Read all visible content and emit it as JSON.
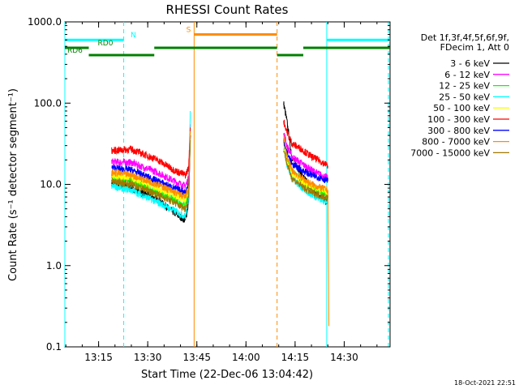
{
  "chart_data": {
    "type": "line",
    "title": "RHESSI Count Rates",
    "xlabel": "Start Time (22-Dec-06 13:04:42)",
    "ylabel": "Count Rate (s⁻¹ detector segment⁻¹)",
    "yscale": "log",
    "ylim": [
      0.1,
      1000
    ],
    "xlim": [
      "13:04:42",
      "14:44:00"
    ],
    "grid": false,
    "legend_position": "right",
    "legend_header": [
      "Det 1f,3f,4f,5f,6f,9f,",
      "FDecim 1, Att 0"
    ],
    "x_ticks": [
      "13:15",
      "13:30",
      "13:45",
      "14:00",
      "14:15",
      "14:30"
    ],
    "y_ticks": [
      "0.1",
      "1.0",
      "10.0",
      "100.0",
      "1000.0"
    ],
    "footer_text": "18-Oct-2021 22:51",
    "series": [
      {
        "name": "3 - 6 keV",
        "color": "#000000",
        "segments": [
          {
            "x": [
              "13:19:00",
              "13:25:00",
              "13:33:00",
              "13:38:00",
              "13:41:30",
              "13:42:30",
              "13:43:00"
            ],
            "y": [
              10.5,
              9.0,
              6.5,
              4.5,
              3.6,
              6.0,
              40.0
            ]
          },
          {
            "x": [
              "14:11:30",
              "14:12:30",
              "14:14:00",
              "14:17:00",
              "14:20:00",
              "14:23:00",
              "14:25:00"
            ],
            "y": [
              100.0,
              60.0,
              22.0,
              13.0,
              9.0,
              7.0,
              6.0
            ]
          }
        ]
      },
      {
        "name": "6 - 12 keV",
        "color": "#ff00ff",
        "segments": [
          {
            "x": [
              "13:19:00",
              "13:25:00",
              "13:33:00",
              "13:38:00",
              "13:41:30",
              "13:42:30",
              "13:43:00"
            ],
            "y": [
              19.0,
              18.5,
              14.0,
              11.0,
              9.5,
              12.0,
              55.0
            ]
          },
          {
            "x": [
              "14:11:30",
              "14:12:30",
              "14:14:00",
              "14:17:00",
              "14:20:00",
              "14:23:00",
              "14:25:00"
            ],
            "y": [
              45.0,
              30.0,
              22.0,
              18.0,
              15.0,
              13.0,
              12.0
            ]
          }
        ]
      },
      {
        "name": "12 - 25 keV",
        "color": "#00ff00",
        "segments": [
          {
            "x": [
              "13:19:00",
              "13:25:00",
              "13:33:00",
              "13:38:00",
              "13:41:30",
              "13:42:30",
              "13:43:00"
            ],
            "y": [
              12.0,
              11.0,
              8.0,
              6.5,
              5.5,
              8.0,
              50.0
            ]
          },
          {
            "x": [
              "14:11:30",
              "14:12:30",
              "14:14:00",
              "14:17:00",
              "14:20:00",
              "14:23:00",
              "14:25:00"
            ],
            "y": [
              35.0,
              22.0,
              15.0,
              11.0,
              9.0,
              8.0,
              7.0
            ]
          }
        ]
      },
      {
        "name": "25 - 50 keV",
        "color": "#00ffff",
        "segments": [
          {
            "x": [
              "13:19:00",
              "13:25:00",
              "13:33:00",
              "13:38:00",
              "13:41:30",
              "13:42:30",
              "13:43:00"
            ],
            "y": [
              9.5,
              8.5,
              6.0,
              4.8,
              4.0,
              7.0,
              80.0
            ]
          },
          {
            "x": [
              "14:11:30",
              "14:12:30",
              "14:14:00",
              "14:17:00",
              "14:20:00",
              "14:23:00",
              "14:25:00"
            ],
            "y": [
              30.0,
              18.0,
              12.0,
              9.0,
              7.5,
              6.5,
              6.0
            ]
          }
        ]
      },
      {
        "name": "50 - 100 keV",
        "color": "#ffff00",
        "segments": [
          {
            "x": [
              "13:19:00",
              "13:25:00",
              "13:33:00",
              "13:38:00",
              "13:41:30",
              "13:42:30",
              "13:43:00"
            ],
            "y": [
              13.0,
              12.0,
              9.0,
              7.5,
              6.5,
              9.0,
              45.0
            ]
          },
          {
            "x": [
              "14:11:30",
              "14:12:30",
              "14:14:00",
              "14:17:00",
              "14:20:00",
              "14:23:00",
              "14:25:00"
            ],
            "y": [
              30.0,
              20.0,
              14.0,
              11.0,
              9.5,
              8.5,
              8.0
            ]
          }
        ]
      },
      {
        "name": "100 - 300 keV",
        "color": "#ff0000",
        "segments": [
          {
            "x": [
              "13:19:00",
              "13:25:00",
              "13:33:00",
              "13:38:00",
              "13:41:30",
              "13:42:30",
              "13:43:00"
            ],
            "y": [
              26.0,
              27.0,
              20.0,
              15.0,
              13.0,
              16.0,
              50.0
            ]
          },
          {
            "x": [
              "14:11:30",
              "14:12:30",
              "14:14:00",
              "14:17:00",
              "14:20:00",
              "14:23:00",
              "14:25:00"
            ],
            "y": [
              60.0,
              45.0,
              32.0,
              27.0,
              22.0,
              19.0,
              17.0
            ]
          }
        ]
      },
      {
        "name": "300 - 800 keV",
        "color": "#0000ff",
        "segments": [
          {
            "x": [
              "13:19:00",
              "13:25:00",
              "13:33:00",
              "13:38:00",
              "13:41:30",
              "13:42:30",
              "13:43:00"
            ],
            "y": [
              16.0,
              15.0,
              11.0,
              9.0,
              8.0,
              10.0,
              40.0
            ]
          },
          {
            "x": [
              "14:11:30",
              "14:12:30",
              "14:14:00",
              "14:17:00",
              "14:20:00",
              "14:23:00",
              "14:25:00"
            ],
            "y": [
              35.0,
              25.0,
              18.0,
              15.0,
              13.0,
              12.0,
              11.0
            ]
          }
        ]
      },
      {
        "name": "800 - 7000 keV",
        "color": "#ff8c00",
        "segments": [
          {
            "x": [
              "13:19:00",
              "13:25:00",
              "13:33:00",
              "13:38:00",
              "13:41:30",
              "13:42:30",
              "13:43:00"
            ],
            "y": [
              14.0,
              13.0,
              10.0,
              8.0,
              7.0,
              9.0,
              45.0
            ]
          },
          {
            "x": [
              "14:11:30",
              "14:12:30",
              "14:14:00",
              "14:17:00",
              "14:20:00",
              "14:23:00",
              "14:25:00",
              "14:25:20"
            ],
            "y": [
              40.0,
              22.0,
              15.0,
              12.0,
              10.0,
              9.0,
              8.5,
              0.18
            ]
          }
        ]
      },
      {
        "name": "7000 - 15000 keV",
        "color": "#a07800",
        "segments": [
          {
            "x": [
              "13:19:00",
              "13:25:00",
              "13:33:00",
              "13:38:00",
              "13:41:30",
              "13:42:30",
              "13:43:00"
            ],
            "y": [
              11.0,
              10.0,
              7.5,
              6.0,
              5.0,
              7.0,
              35.0
            ]
          },
          {
            "x": [
              "14:11:30",
              "14:12:30",
              "14:14:00",
              "14:17:00",
              "14:20:00",
              "14:23:00",
              "14:25:00"
            ],
            "y": [
              28.0,
              18.0,
              12.0,
              9.5,
              8.0,
              7.2,
              6.8
            ]
          }
        ]
      }
    ],
    "flag_bars": [
      {
        "label": "N",
        "color": "#00ffff",
        "y": 600,
        "segments": [
          [
            "13:04:42",
            "13:22:40"
          ],
          [
            "14:24:40",
            "14:44:00"
          ]
        ],
        "label_at": "13:24:00"
      },
      {
        "label": "S",
        "color": "#ff8c00",
        "y": 700,
        "segments": [
          [
            "13:44:10",
            "14:09:30"
          ]
        ],
        "label_at": "13:41:00"
      },
      {
        "label": "RD0",
        "color": "#008000",
        "y": 480,
        "segments": [
          [
            "13:04:42",
            "13:12:00"
          ],
          [
            "13:32:00",
            "14:09:30"
          ],
          [
            "14:17:30",
            "14:44:00"
          ]
        ],
        "label_at": "13:14:00"
      },
      {
        "label": "RD6",
        "color": "#008000",
        "y": 390,
        "segments": [
          [
            "13:12:00",
            "13:32:00"
          ],
          [
            "14:09:30",
            "14:17:30"
          ]
        ],
        "label_at": "13:04:42"
      }
    ],
    "vlines": [
      {
        "x": "13:04:42",
        "color": "#00ffff",
        "style": "solid"
      },
      {
        "x": "13:22:40",
        "color": "#00ffff",
        "style": "dashed"
      },
      {
        "x": "13:44:10",
        "color": "#ff8c00",
        "style": "solid"
      },
      {
        "x": "14:09:30",
        "color": "#ff8c00",
        "style": "dashed"
      },
      {
        "x": "14:24:40",
        "color": "#00ffff",
        "style": "solid"
      },
      {
        "x": "14:43:30",
        "color": "#00ffff",
        "style": "dashed"
      }
    ]
  }
}
